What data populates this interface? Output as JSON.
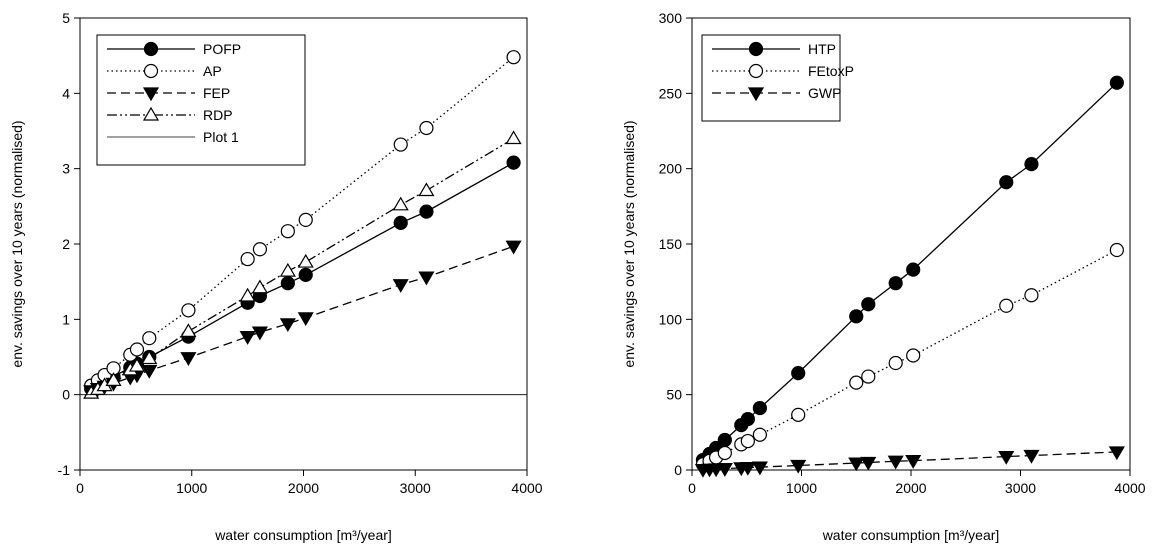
{
  "chart_data": [
    {
      "type": "line",
      "xlabel": "water consumption [m³/year]",
      "ylabel": "env. savings over 10 years (normalised)",
      "x": [
        100,
        160,
        220,
        300,
        450,
        510,
        620,
        970,
        1500,
        1610,
        1860,
        2020,
        2870,
        3100,
        3880
      ],
      "xlim": [
        0,
        4000
      ],
      "xticks": [
        0,
        1000,
        2000,
        3000,
        4000
      ],
      "ylim": [
        -1,
        5
      ],
      "yticks": [
        -1,
        0,
        1,
        2,
        3,
        4,
        5
      ],
      "legend": "upper left",
      "series": [
        {
          "name": "POFP",
          "color": "#000000",
          "marker": "circle-filled",
          "linestyle": "solid",
          "values": [
            0.08,
            0.13,
            0.18,
            0.24,
            0.36,
            0.41,
            0.5,
            0.77,
            1.22,
            1.31,
            1.48,
            1.59,
            2.28,
            2.43,
            3.08
          ]
        },
        {
          "name": "AP",
          "color": "#000000",
          "marker": "circle-open",
          "linestyle": "dotted",
          "values": [
            0.12,
            0.19,
            0.26,
            0.35,
            0.53,
            0.6,
            0.75,
            1.12,
            1.8,
            1.93,
            2.17,
            2.32,
            3.32,
            3.54,
            4.48
          ]
        },
        {
          "name": "FEP",
          "color": "#000000",
          "marker": "triangle-down-filled",
          "linestyle": "dashed",
          "values": [
            0.05,
            0.08,
            0.11,
            0.15,
            0.23,
            0.26,
            0.32,
            0.49,
            0.77,
            0.83,
            0.94,
            1.02,
            1.46,
            1.56,
            1.97
          ]
        },
        {
          "name": "RDP",
          "color": "#000000",
          "marker": "triangle-up-open",
          "linestyle": "dashdotdot",
          "values": [
            0.02,
            0.07,
            0.12,
            0.19,
            0.33,
            0.38,
            0.48,
            0.84,
            1.31,
            1.42,
            1.64,
            1.76,
            2.52,
            2.71,
            3.4
          ]
        },
        {
          "name": "Plot 1",
          "color": "#000000",
          "marker": "none",
          "linestyle": "thin",
          "x": [
            0,
            4000
          ],
          "values": [
            0,
            0
          ]
        }
      ]
    },
    {
      "type": "line",
      "xlabel": "water consumption [m³/year]",
      "ylabel": "env. savings over 10 years (normalised)",
      "x": [
        100,
        160,
        220,
        300,
        450,
        510,
        620,
        970,
        1500,
        1610,
        1860,
        2020,
        2870,
        3100,
        3880
      ],
      "xlim": [
        0,
        4000
      ],
      "xticks": [
        0,
        1000,
        2000,
        3000,
        4000
      ],
      "ylim": [
        0,
        300
      ],
      "yticks": [
        0,
        50,
        100,
        150,
        200,
        250,
        300
      ],
      "legend": "upper left",
      "series": [
        {
          "name": "HTP",
          "color": "#000000",
          "marker": "circle-filled",
          "linestyle": "solid",
          "values": [
            6.6,
            10.6,
            14.6,
            19.9,
            29.8,
            33.8,
            41.1,
            64.3,
            102,
            110,
            124,
            133,
            191,
            203,
            257
          ]
        },
        {
          "name": "FEtoxP",
          "color": "#000000",
          "marker": "circle-open",
          "linestyle": "dotted",
          "values": [
            3.8,
            6,
            8.3,
            11.3,
            17,
            19.2,
            23.4,
            36.6,
            58,
            62,
            71,
            76,
            109,
            116,
            146
          ]
        },
        {
          "name": "GWP",
          "color": "#000000",
          "marker": "triangle-down-filled",
          "linestyle": "dashed",
          "values": [
            0.3,
            0.5,
            0.7,
            0.9,
            1.4,
            1.6,
            1.9,
            3,
            4.6,
            5,
            5.8,
            6.2,
            8.9,
            9.6,
            12
          ]
        }
      ]
    }
  ]
}
